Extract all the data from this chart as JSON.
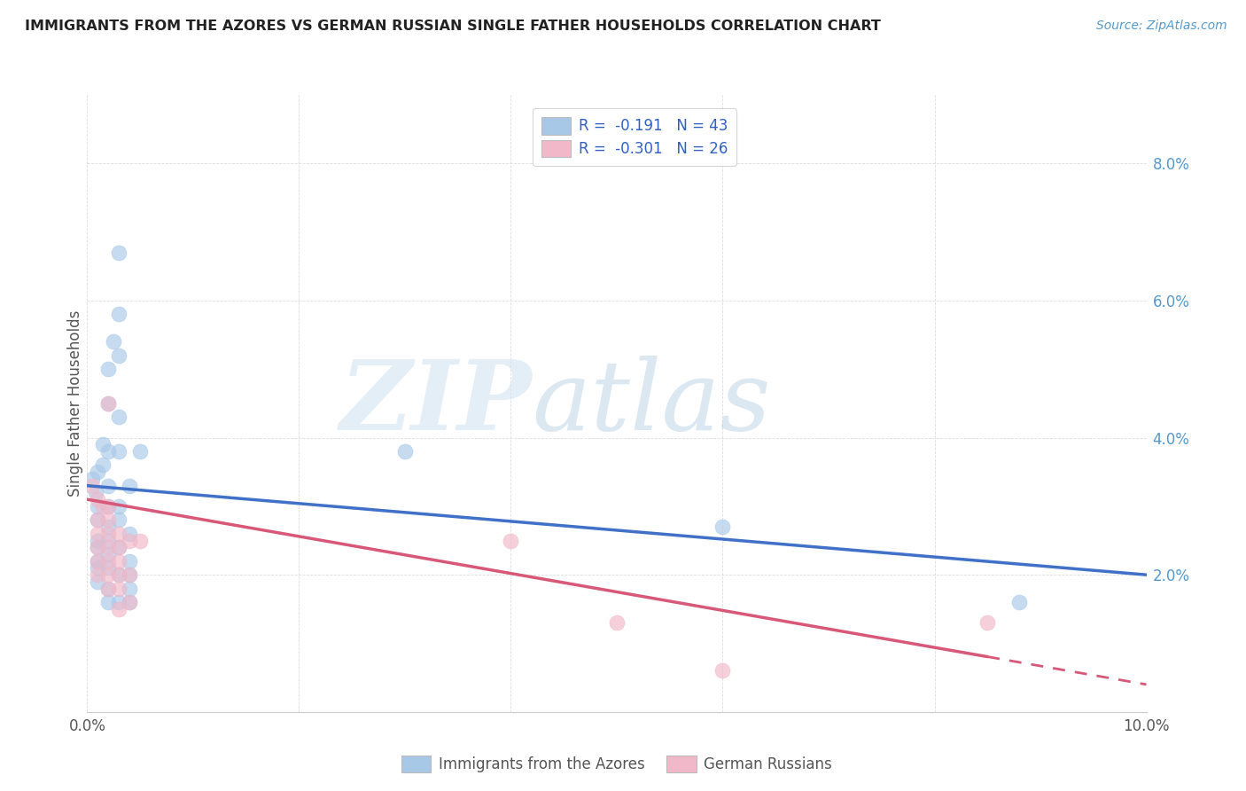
{
  "title": "IMMIGRANTS FROM THE AZORES VS GERMAN RUSSIAN SINGLE FATHER HOUSEHOLDS CORRELATION CHART",
  "source": "Source: ZipAtlas.com",
  "ylabel": "Single Father Households",
  "xlim": [
    0.0,
    0.1
  ],
  "ylim": [
    0.0,
    0.09
  ],
  "yticks": [
    0.0,
    0.02,
    0.04,
    0.06,
    0.08
  ],
  "xticks": [
    0.0,
    0.02,
    0.04,
    0.06,
    0.08,
    0.1
  ],
  "background_color": "#ffffff",
  "blue_color": "#a8c8e8",
  "pink_color": "#f0b8c8",
  "blue_line_color": "#4070c8",
  "pink_line_color": "#d85878",
  "blue_line": [
    [
      0.0,
      0.033
    ],
    [
      0.1,
      0.02
    ]
  ],
  "pink_line": [
    [
      0.0,
      0.031
    ],
    [
      0.1,
      0.004
    ]
  ],
  "tick_color": "#5599cc",
  "title_color": "#222222",
  "grid_color": "#dddddd",
  "blue_scatter": [
    [
      0.0005,
      0.034
    ],
    [
      0.0008,
      0.032
    ],
    [
      0.001,
      0.035
    ],
    [
      0.001,
      0.03
    ],
    [
      0.001,
      0.028
    ],
    [
      0.001,
      0.025
    ],
    [
      0.001,
      0.024
    ],
    [
      0.001,
      0.022
    ],
    [
      0.001,
      0.021
    ],
    [
      0.001,
      0.019
    ],
    [
      0.0015,
      0.039
    ],
    [
      0.0015,
      0.036
    ],
    [
      0.002,
      0.05
    ],
    [
      0.002,
      0.045
    ],
    [
      0.002,
      0.038
    ],
    [
      0.002,
      0.033
    ],
    [
      0.002,
      0.03
    ],
    [
      0.002,
      0.027
    ],
    [
      0.002,
      0.025
    ],
    [
      0.002,
      0.023
    ],
    [
      0.002,
      0.021
    ],
    [
      0.002,
      0.018
    ],
    [
      0.002,
      0.016
    ],
    [
      0.0025,
      0.054
    ],
    [
      0.003,
      0.067
    ],
    [
      0.003,
      0.058
    ],
    [
      0.003,
      0.052
    ],
    [
      0.003,
      0.043
    ],
    [
      0.003,
      0.038
    ],
    [
      0.003,
      0.03
    ],
    [
      0.003,
      0.028
    ],
    [
      0.003,
      0.024
    ],
    [
      0.003,
      0.02
    ],
    [
      0.003,
      0.016
    ],
    [
      0.004,
      0.033
    ],
    [
      0.004,
      0.026
    ],
    [
      0.004,
      0.022
    ],
    [
      0.004,
      0.02
    ],
    [
      0.004,
      0.018
    ],
    [
      0.004,
      0.016
    ],
    [
      0.005,
      0.038
    ],
    [
      0.03,
      0.038
    ],
    [
      0.06,
      0.027
    ],
    [
      0.088,
      0.016
    ]
  ],
  "pink_scatter": [
    [
      0.0005,
      0.033
    ],
    [
      0.001,
      0.031
    ],
    [
      0.001,
      0.028
    ],
    [
      0.001,
      0.026
    ],
    [
      0.001,
      0.024
    ],
    [
      0.001,
      0.022
    ],
    [
      0.001,
      0.02
    ],
    [
      0.0015,
      0.03
    ],
    [
      0.002,
      0.045
    ],
    [
      0.002,
      0.03
    ],
    [
      0.002,
      0.028
    ],
    [
      0.002,
      0.026
    ],
    [
      0.002,
      0.024
    ],
    [
      0.002,
      0.022
    ],
    [
      0.002,
      0.02
    ],
    [
      0.002,
      0.018
    ],
    [
      0.003,
      0.026
    ],
    [
      0.003,
      0.024
    ],
    [
      0.003,
      0.022
    ],
    [
      0.003,
      0.02
    ],
    [
      0.003,
      0.018
    ],
    [
      0.003,
      0.015
    ],
    [
      0.004,
      0.025
    ],
    [
      0.004,
      0.02
    ],
    [
      0.004,
      0.016
    ],
    [
      0.005,
      0.025
    ],
    [
      0.04,
      0.025
    ],
    [
      0.05,
      0.013
    ],
    [
      0.06,
      0.006
    ],
    [
      0.085,
      0.013
    ]
  ]
}
